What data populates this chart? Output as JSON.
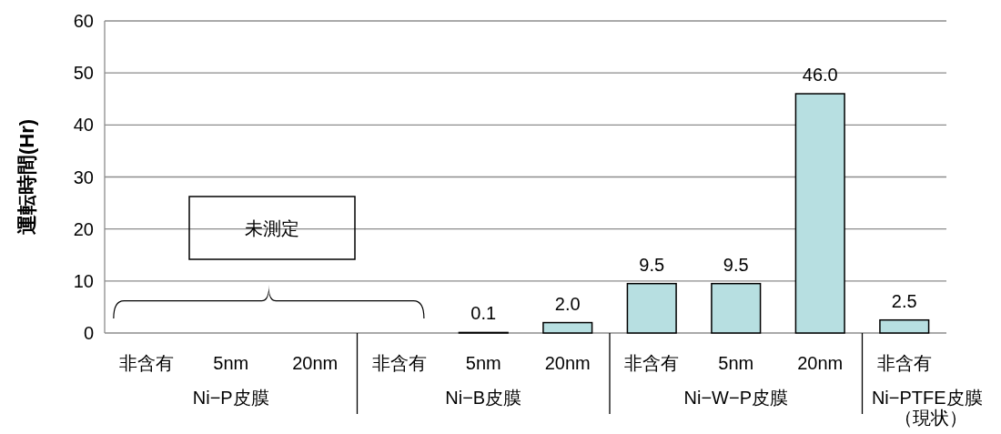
{
  "chart_data": {
    "type": "bar",
    "ylabel": "運転時間(Hr)",
    "categories": [
      "非含有",
      "5nm",
      "20nm",
      "非含有",
      "5nm",
      "20nm",
      "非含有",
      "5nm",
      "20nm",
      "非含有"
    ],
    "values": [
      null,
      null,
      null,
      null,
      0.1,
      2.0,
      9.5,
      9.5,
      46.0,
      2.5
    ],
    "value_labels": [
      null,
      null,
      null,
      null,
      "0.1",
      "2.0",
      "9.5",
      "9.5",
      "46.0",
      "2.5"
    ],
    "color": "#b7dfe1",
    "ylim": [
      0,
      60
    ],
    "yticks": [
      0,
      10,
      20,
      30,
      40,
      50,
      60
    ],
    "grid": "y",
    "annotations": [
      "未測定",
      "Ni−P皮膜",
      "Ni−B皮膜",
      "Ni−W−P皮膜",
      "Ni−PTFE皮膜",
      "（現状）"
    ]
  }
}
